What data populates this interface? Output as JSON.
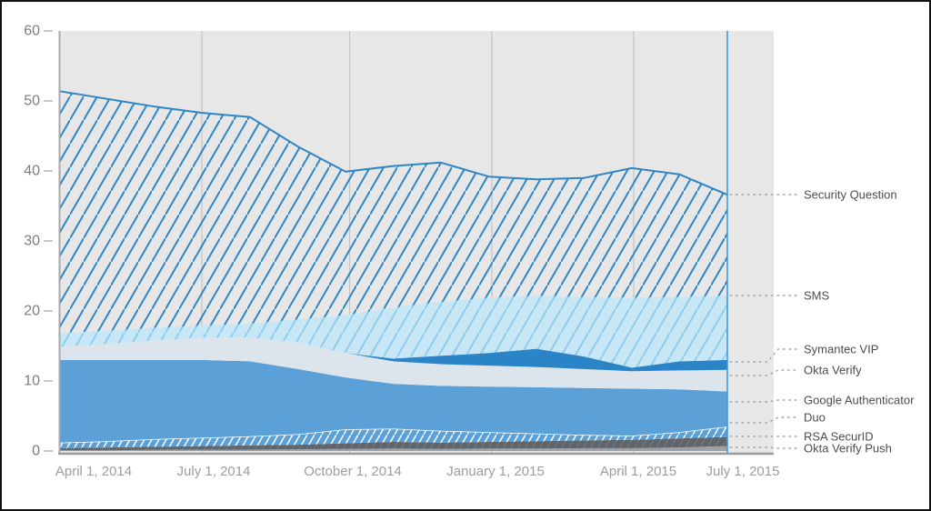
{
  "chart_data": {
    "type": "area",
    "stacked": true,
    "title": "",
    "xlabel": "",
    "ylabel": "",
    "ylim": [
      0,
      60
    ],
    "y_ticks": [
      0,
      10,
      20,
      30,
      40,
      50,
      60
    ],
    "x_tick_labels": [
      "April 1, 2014",
      "July 1, 2014",
      "October 1, 2014",
      "January 1, 2015",
      "April 1, 2015",
      "July 1, 2015"
    ],
    "x": [
      "2014-04",
      "2014-05",
      "2014-06",
      "2014-07",
      "2014-08",
      "2014-09",
      "2014-10",
      "2014-11",
      "2014-12",
      "2015-01",
      "2015-02",
      "2015-03",
      "2015-04",
      "2015-05",
      "2015-06"
    ],
    "grid": "vertical-only",
    "legend_position": "right",
    "legend": [
      "Security Question",
      "SMS",
      "Symantec VIP",
      "Okta Verify",
      "Google Authenticator",
      "Duo",
      "RSA SecurID",
      "Okta Verify Push"
    ],
    "series": [
      {
        "name": "Okta Verify Push",
        "color": "#9ba1a6",
        "hatch": null,
        "values": [
          0.1,
          0.1,
          0.15,
          0.2,
          0.2,
          0.25,
          0.3,
          0.35,
          0.3,
          0.35,
          0.35,
          0.4,
          0.4,
          0.5,
          0.7
        ]
      },
      {
        "name": "RSA SecurID",
        "color": "#5d666d",
        "hatch": "rsa",
        "values": [
          0.3,
          0.4,
          0.45,
          0.5,
          0.6,
          0.65,
          0.8,
          0.95,
          0.9,
          0.95,
          1.05,
          1.1,
          1.2,
          1.3,
          1.3
        ]
      },
      {
        "name": "Duo",
        "color": "#5ba0d7",
        "hatch": "duo",
        "top_stroke": "#ffffff",
        "values": [
          0.8,
          0.9,
          1.1,
          1.2,
          1.3,
          1.5,
          2.0,
          1.9,
          1.7,
          1.4,
          1.1,
          0.8,
          0.6,
          0.9,
          1.5
        ]
      },
      {
        "name": "Google Authenticator",
        "color": "#5ba0d7",
        "hatch": null,
        "values": [
          11.8,
          11.6,
          11.3,
          11.1,
          10.7,
          9.3,
          7.4,
          6.4,
          6.4,
          6.5,
          6.6,
          6.7,
          6.7,
          6.1,
          5.0
        ]
      },
      {
        "name": "Okta Verify",
        "color": "#dde5ec",
        "hatch": null,
        "values": [
          1.9,
          2.3,
          2.8,
          3.2,
          3.4,
          3.8,
          3.5,
          3.2,
          3.1,
          3.0,
          2.9,
          2.7,
          2.5,
          2.7,
          3.1
        ]
      },
      {
        "name": "Symantec VIP",
        "color": "#2b84c6",
        "hatch": null,
        "values": [
          0,
          0,
          0,
          0,
          0,
          0,
          0,
          0.4,
          1.2,
          1.8,
          2.6,
          1.8,
          0.5,
          1.3,
          1.4
        ]
      },
      {
        "name": "SMS",
        "color": "#c7e7f7",
        "hatch": "sms",
        "values": [
          1.9,
          1.9,
          1.8,
          1.7,
          2.0,
          3.3,
          5.4,
          7.3,
          7.7,
          7.9,
          7.6,
          8.5,
          10.0,
          9.2,
          9.2
        ]
      },
      {
        "name": "Security Question",
        "color": "none",
        "hatch": "sq",
        "top_stroke": "#2e86c5",
        "values": [
          34.6,
          33.1,
          31.6,
          30.4,
          29.5,
          24.7,
          20.5,
          20.2,
          19.9,
          17.3,
          16.6,
          17.0,
          18.5,
          17.5,
          14.4
        ]
      }
    ],
    "colors": {
      "plot_background": "#e7e7e7",
      "gridline": "#c3c3c3",
      "axis": "#9b9b9b",
      "current_marker": "#3f9ae0",
      "legend_leader": "#a3a3a3"
    }
  }
}
